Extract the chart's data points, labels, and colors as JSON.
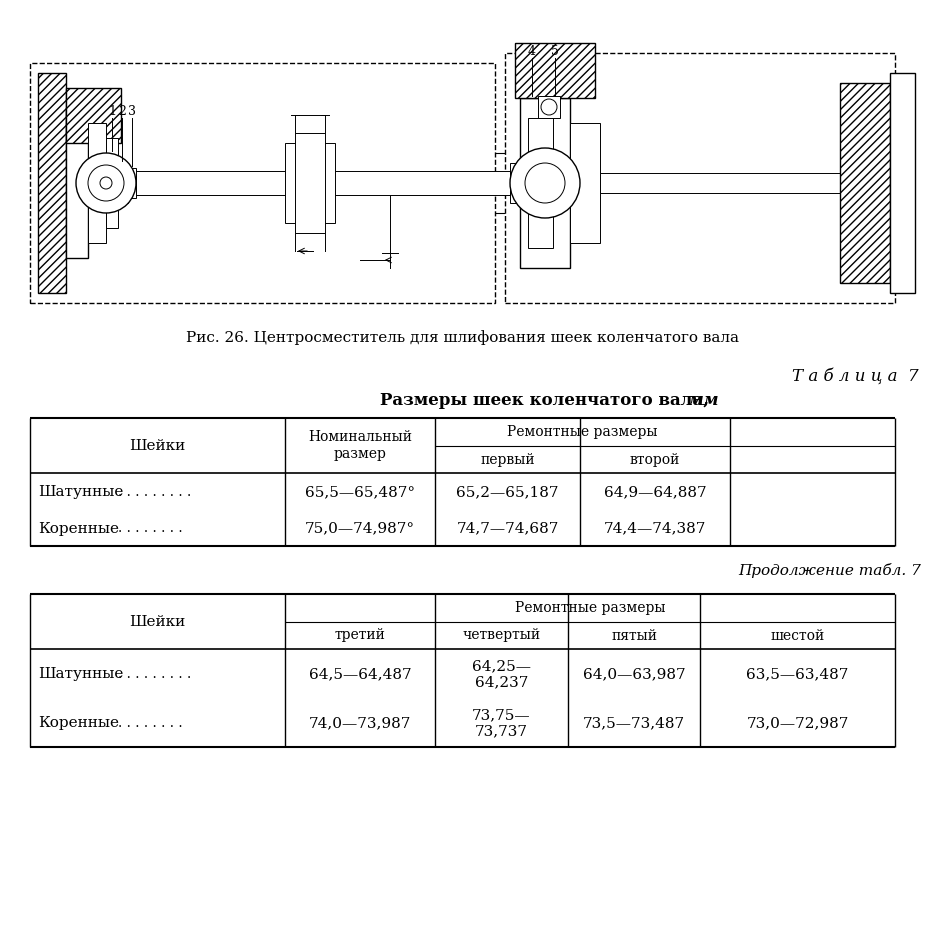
{
  "fig_caption": "Рис. 26. Центросместитель для шлифования шеек коленчатого вала",
  "table_title_label": "Т а б л и ц а  7",
  "table1_title": "Размеры шеек коленчатого вала, ",
  "table1_title_italic": "мм",
  "table1_header_col0": "Шейки",
  "table1_header_col1": "Номинальный\nразмер",
  "table1_header_remontnie": "Ремонтные размеры",
  "table1_header_perviy": "первый",
  "table1_header_vtoroy": "второй",
  "table1_rows": [
    [
      "Шатунные",
      ". . . . . . . . .",
      "65,5—65,487°",
      "65,2—65,187",
      "64,9—64,887"
    ],
    [
      "Коренные",
      ". . . . . . . .",
      "75,0—74,987°",
      "74,7—74,687",
      "74,4—74,387"
    ]
  ],
  "table2_continuation": "Продолжение табл. 7",
  "table2_header_col0": "Шейки",
  "table2_header_remontnie": "Ремонтные размеры",
  "table2_header_tretiy": "третий",
  "table2_header_chetvertiy": "четвертый",
  "table2_header_pyatiy": "пятый",
  "table2_header_shestoy": "шестой",
  "table2_rows": [
    [
      "Шатунные",
      ". . . . . . . . .",
      "64,5—64,487",
      "64,25—\n64,237",
      "64,0—63,987",
      "63,5—63,487"
    ],
    [
      "Коренные",
      ". . . . . . . .",
      "74,0—73,987",
      "73,75—\n73,737",
      "73,5—73,487",
      "73,0—72,987"
    ]
  ],
  "bg_color": "#ffffff",
  "text_color": "#000000"
}
